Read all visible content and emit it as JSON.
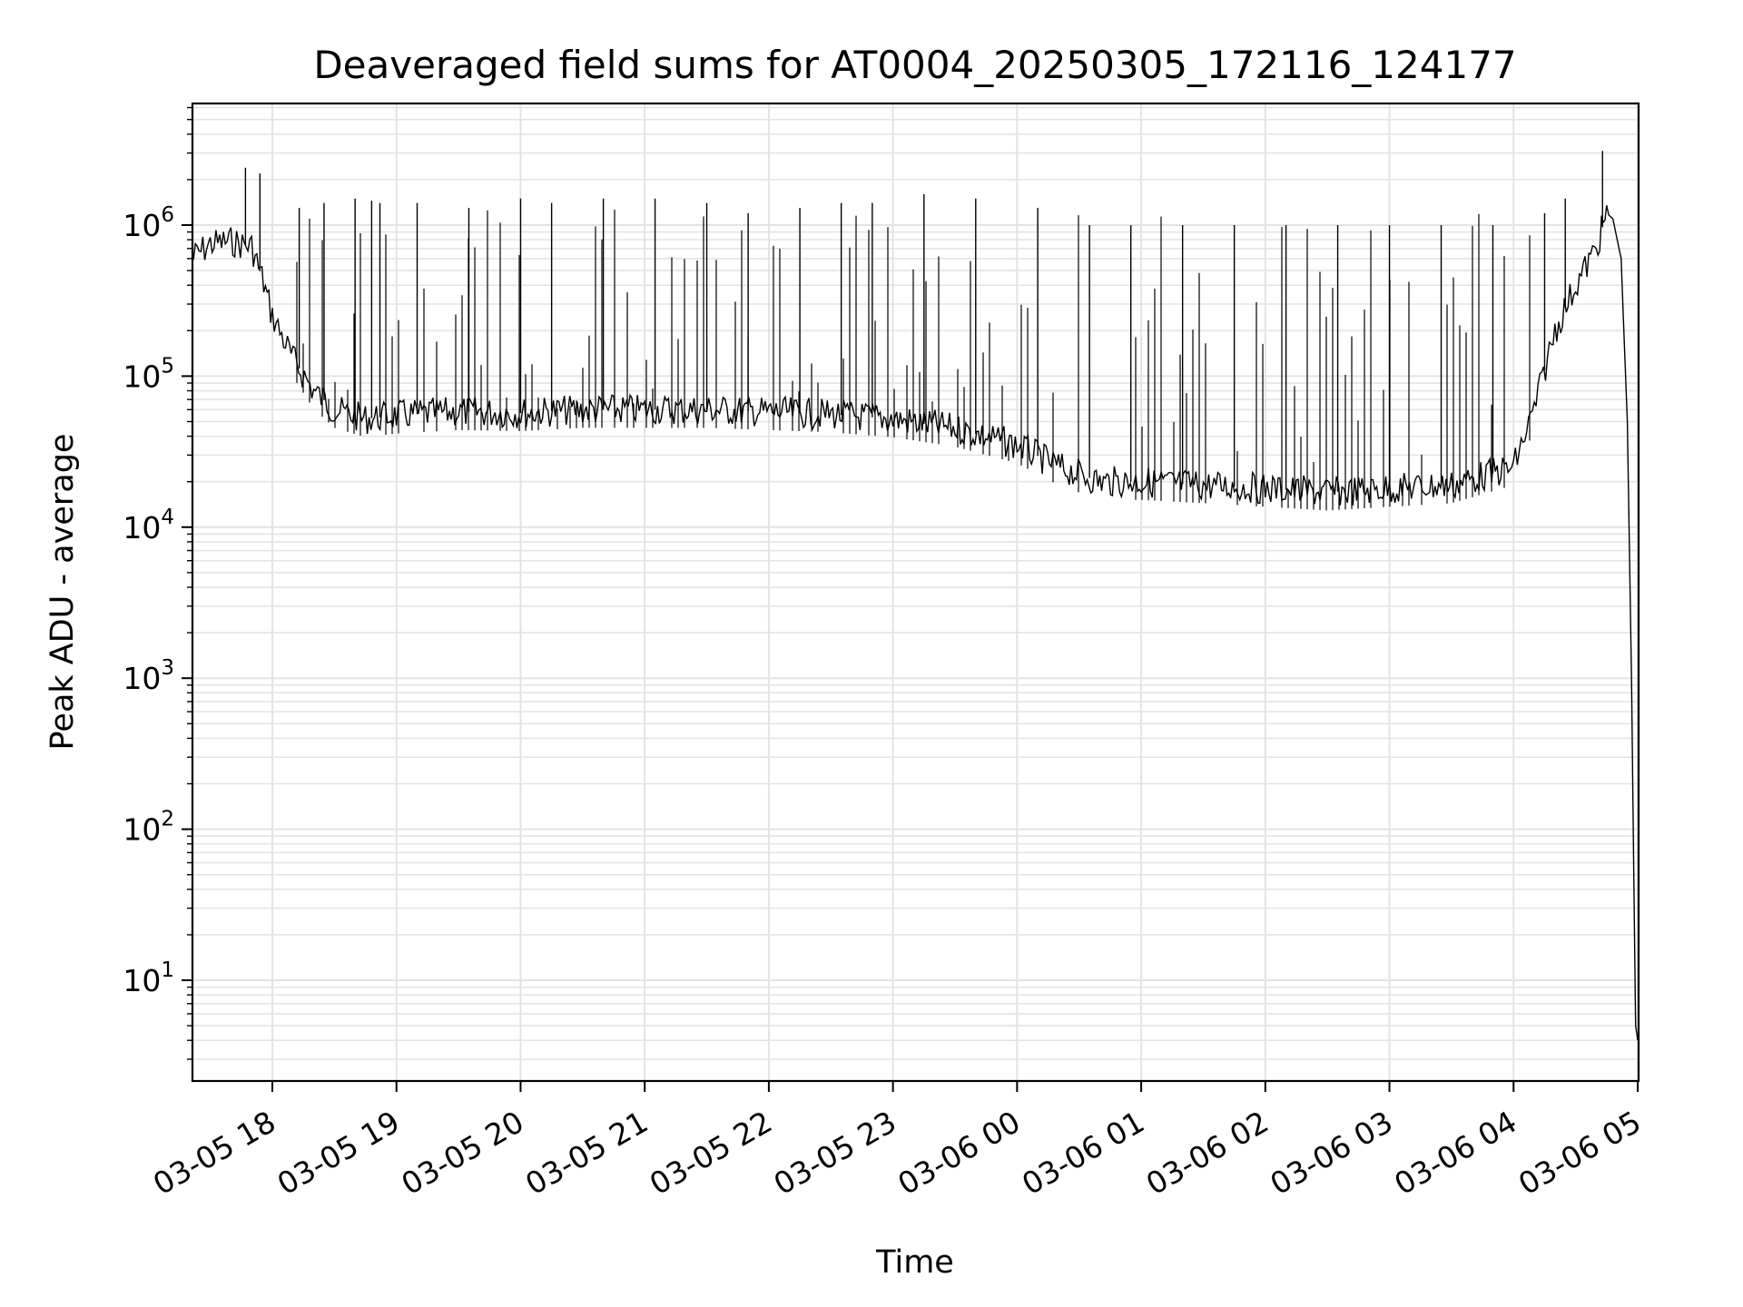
{
  "chart_data": {
    "type": "line",
    "title": "Deaveraged field sums for AT0004_20250305_172116_124177",
    "xlabel": "Time",
    "ylabel": "Peak ADU - average",
    "yscale": "log",
    "ylim": [
      2,
      6000000
    ],
    "xlim": [
      "2025-03-05 17:21",
      "2025-03-06 05:00"
    ],
    "x_ticks": [
      "03-05 18",
      "03-05 19",
      "03-05 20",
      "03-05 21",
      "03-05 22",
      "03-05 23",
      "03-06 00",
      "03-06 01",
      "03-06 02",
      "03-06 03",
      "03-06 04",
      "03-06 05"
    ],
    "y_ticks": [
      {
        "base": "10",
        "exp": "1",
        "value": 10
      },
      {
        "base": "10",
        "exp": "2",
        "value": 100
      },
      {
        "base": "10",
        "exp": "3",
        "value": 1000
      },
      {
        "base": "10",
        "exp": "4",
        "value": 10000
      },
      {
        "base": "10",
        "exp": "5",
        "value": 100000
      },
      {
        "base": "10",
        "exp": "6",
        "value": 1000000
      }
    ],
    "grid": true,
    "line_color": "#000000",
    "series": [
      {
        "name": "",
        "x": [
          "2025-03-05 17:21",
          "2025-03-05 17:30",
          "2025-03-05 17:40",
          "2025-03-05 17:50",
          "2025-03-05 17:55",
          "2025-03-05 18:00",
          "2025-03-05 18:10",
          "2025-03-05 18:20",
          "2025-03-05 18:30",
          "2025-03-05 18:45",
          "2025-03-05 19:00",
          "2025-03-05 19:30",
          "2025-03-05 20:00",
          "2025-03-05 20:30",
          "2025-03-05 21:00",
          "2025-03-05 21:30",
          "2025-03-05 22:00",
          "2025-03-05 22:30",
          "2025-03-05 23:00",
          "2025-03-05 23:30",
          "2025-03-05 23:50",
          "2025-03-06 00:00",
          "2025-03-06 00:20",
          "2025-03-06 00:40",
          "2025-03-06 01:00",
          "2025-03-06 01:30",
          "2025-03-06 02:00",
          "2025-03-06 02:30",
          "2025-03-06 03:00",
          "2025-03-06 03:30",
          "2025-03-06 04:00",
          "2025-03-06 04:10",
          "2025-03-06 04:20",
          "2025-03-06 04:30",
          "2025-03-06 04:40",
          "2025-03-06 04:45",
          "2025-03-06 04:48",
          "2025-03-06 04:52",
          "2025-03-06 04:55",
          "2025-03-06 04:57",
          "2025-03-06 04:59",
          "2025-03-06 05:00"
        ],
        "y": [
          600000,
          750000,
          780000,
          720000,
          450000,
          250000,
          130000,
          80000,
          60000,
          52000,
          55000,
          58000,
          57000,
          60000,
          60000,
          60000,
          58000,
          56000,
          52000,
          45000,
          38000,
          35000,
          25000,
          20000,
          20000,
          19000,
          18000,
          17000,
          18000,
          19000,
          25000,
          60000,
          200000,
          400000,
          700000,
          1200000,
          1100000,
          600000,
          50000,
          1000,
          5,
          4
        ]
      }
    ],
    "spike_series": {
      "x": [
        "2025-03-05 17:47",
        "2025-03-05 17:54",
        "2025-03-05 18:13",
        "2025-03-05 18:25",
        "2025-03-05 18:40",
        "2025-03-05 18:48",
        "2025-03-05 18:52",
        "2025-03-05 19:10",
        "2025-03-05 19:35",
        "2025-03-05 20:00",
        "2025-03-05 20:15",
        "2025-03-05 20:40",
        "2025-03-05 21:05",
        "2025-03-05 21:30",
        "2025-03-05 21:50",
        "2025-03-05 22:15",
        "2025-03-05 22:35",
        "2025-03-05 22:50",
        "2025-03-05 23:15",
        "2025-03-05 23:40",
        "2025-03-06 00:10",
        "2025-03-06 00:35",
        "2025-03-06 00:55",
        "2025-03-06 01:20",
        "2025-03-06 01:45",
        "2025-03-06 02:10",
        "2025-03-06 02:35",
        "2025-03-06 03:00",
        "2025-03-06 03:25",
        "2025-03-06 03:50",
        "2025-03-06 04:15",
        "2025-03-06 04:25",
        "2025-03-06 04:43"
      ],
      "y": [
        2400000,
        2200000,
        1300000,
        1400000,
        1500000,
        1450000,
        1400000,
        1400000,
        1300000,
        1500000,
        1400000,
        1500000,
        1500000,
        1400000,
        1200000,
        1300000,
        1400000,
        1400000,
        1600000,
        1500000,
        1300000,
        1000000,
        1000000,
        1000000,
        1000000,
        1000000,
        1000000,
        1000000,
        1000000,
        1000000,
        1200000,
        1500000,
        3100000
      ]
    }
  }
}
